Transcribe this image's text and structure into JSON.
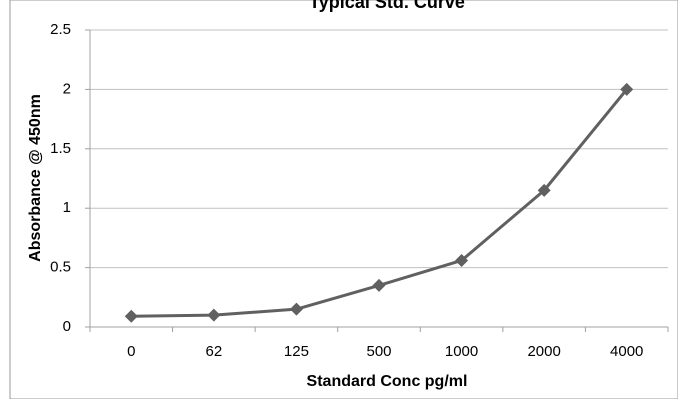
{
  "chart_data": {
    "type": "line",
    "title": "Typical Std. Curve",
    "xlabel": "Standard Conc pg/ml",
    "ylabel": "Absorbance @ 450nm",
    "categories": [
      "0",
      "62",
      "125",
      "500",
      "1000",
      "2000",
      "4000"
    ],
    "series": [
      {
        "values": [
          0.09,
          0.1,
          0.15,
          0.35,
          0.56,
          1.15,
          2.0
        ]
      }
    ],
    "ylim": [
      0,
      2.5
    ],
    "yticks": [
      "0",
      "0.5",
      "1",
      "1.5",
      "2",
      "2.5"
    ],
    "grid": true,
    "legend": "none",
    "colors": {
      "series": "#606060",
      "grid": "#c0c0c0",
      "axis": "#a0a0a0"
    }
  }
}
